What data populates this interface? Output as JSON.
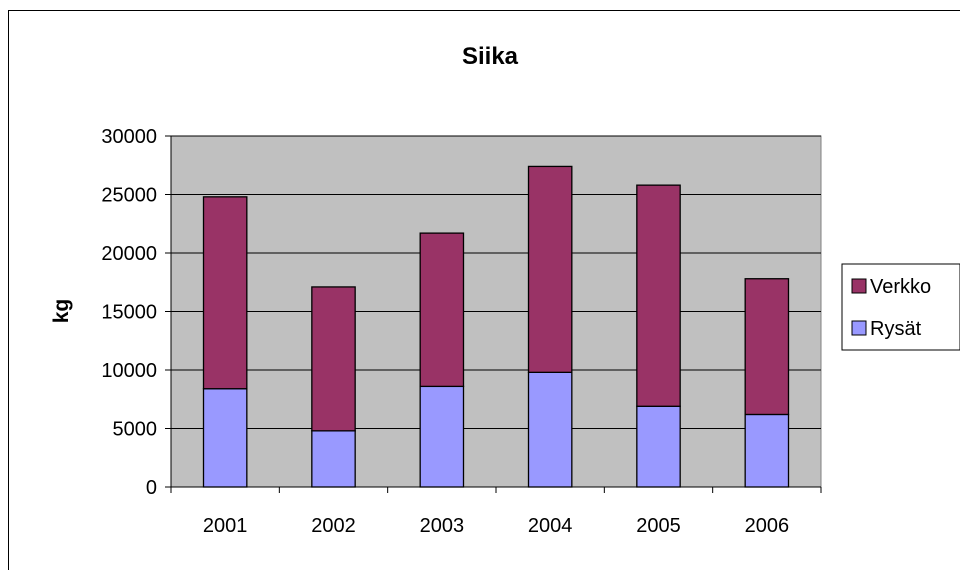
{
  "chart_data": {
    "type": "bar",
    "stacked": true,
    "title": "Siika",
    "xlabel": "",
    "ylabel": "kg",
    "ylim": [
      0,
      30000
    ],
    "yticks": [
      "0",
      "5000",
      "10000",
      "15000",
      "20000",
      "25000",
      "30000"
    ],
    "categories": [
      "2001",
      "2002",
      "2003",
      "2004",
      "2005",
      "2006"
    ],
    "series": [
      {
        "name": "Rysät",
        "color": "#9999ff",
        "values": [
          8400,
          4800,
          8600,
          9800,
          6900,
          6200
        ]
      },
      {
        "name": "Verkko",
        "color": "#993366",
        "values": [
          16400,
          12300,
          13100,
          17600,
          18900,
          11600
        ]
      }
    ],
    "plot_background": "#c0c0c0",
    "grid": true,
    "legend_position": "right",
    "legend_order": [
      "Verkko",
      "Rysät"
    ]
  }
}
